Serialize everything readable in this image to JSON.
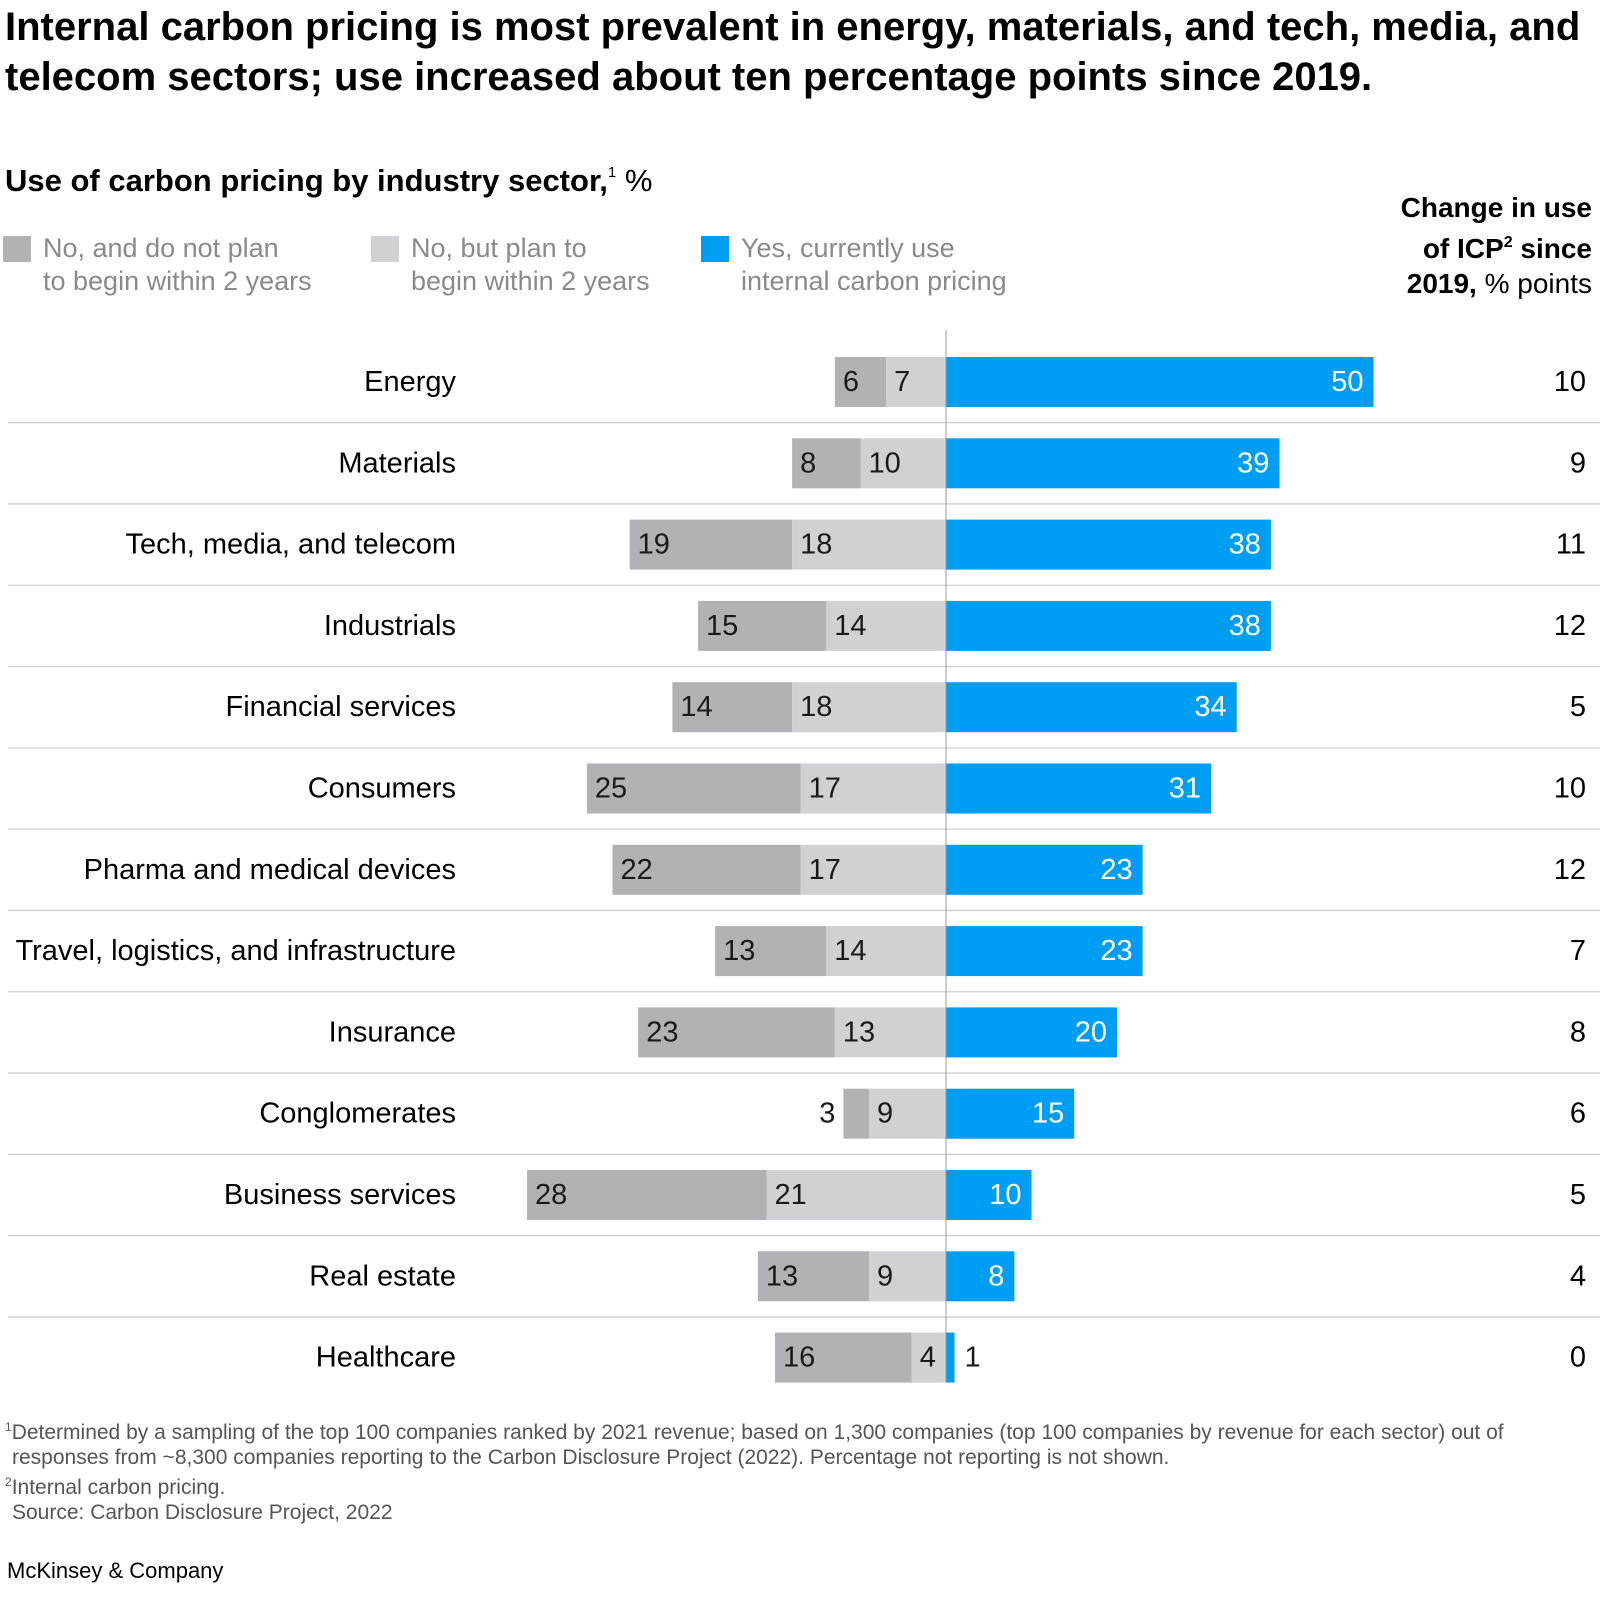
{
  "title": "Internal carbon pricing is most prevalent in energy, materials, and tech, media, and telecom sectors; use increased about ten percentage points since 2019.",
  "subtitle": {
    "text": "Use of carbon pricing by industry sector,",
    "footnote_ref": "1",
    "unit": "%"
  },
  "legend": [
    {
      "line1": "No, and do not plan",
      "line2": "to begin within 2 years",
      "color": "#b2b2b4"
    },
    {
      "line1": "No, but plan to",
      "line2": "begin within 2 years",
      "color": "#d1d1d3"
    },
    {
      "line1": "Yes, currently use",
      "line2": "internal carbon pricing",
      "color": "#009df5"
    }
  ],
  "change_header": {
    "line1": "Change in use",
    "line2_a": "of ICP",
    "line2_sup": "2",
    "line2_b": " since",
    "line3_bold": "2019,",
    "line3_rest": " % points"
  },
  "chart_data": {
    "type": "bar",
    "orientation": "horizontal-diverging-stacked",
    "categories": [
      "Energy",
      "Materials",
      "Tech, media, and telecom",
      "Industrials",
      "Financial services",
      "Consumers",
      "Pharma and medical devices",
      "Travel, logistics, and infrastructure",
      "Insurance",
      "Conglomerates",
      "Business services",
      "Real estate",
      "Healthcare"
    ],
    "series": [
      {
        "name": "No, and do not plan to begin within 2 years",
        "values": [
          6,
          8,
          19,
          15,
          14,
          25,
          22,
          13,
          23,
          3,
          28,
          13,
          16
        ]
      },
      {
        "name": "No, but plan to begin within 2 years",
        "values": [
          7,
          10,
          18,
          14,
          18,
          17,
          17,
          14,
          13,
          9,
          21,
          9,
          4
        ]
      },
      {
        "name": "Yes, currently use internal carbon pricing",
        "values": [
          50,
          39,
          38,
          38,
          34,
          31,
          23,
          23,
          20,
          15,
          10,
          8,
          1
        ]
      }
    ],
    "change_since_2019": [
      10,
      9,
      11,
      12,
      5,
      10,
      12,
      7,
      8,
      6,
      5,
      4,
      0
    ],
    "colors": {
      "no_no_plan": "#b2b2b4",
      "no_plan": "#d1d1d3",
      "yes": "#009df5"
    }
  },
  "footnotes": {
    "f1_mark": "1",
    "f1_line1": "Determined by a sampling of the top 100 companies ranked by 2021 revenue; based on 1,300 companies (top 100 companies by revenue for each sector) out of",
    "f1_line2": "responses from ~8,300 companies reporting to the Carbon Disclosure Project (2022). Percentage not reporting is not shown.",
    "f2_mark": "2",
    "f2_text": "Internal carbon pricing.",
    "source": "Source: Carbon Disclosure Project, 2022"
  },
  "brand": "McKinsey & Company"
}
